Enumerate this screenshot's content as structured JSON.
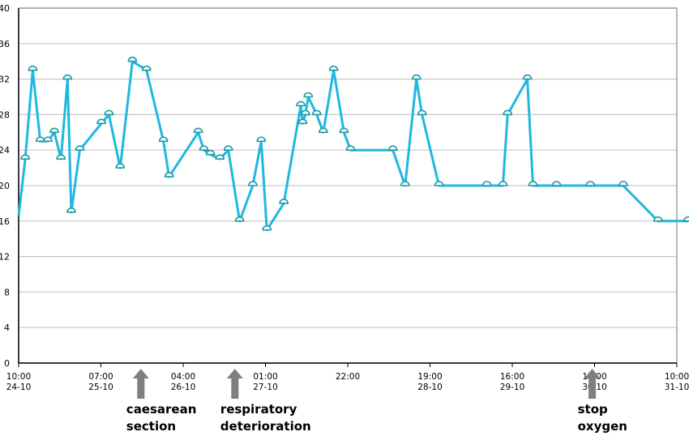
{
  "chart_data": {
    "type": "line",
    "title": "",
    "xlabel": "",
    "ylabel": "",
    "ylim": [
      0,
      40
    ],
    "yticks": [
      0,
      4,
      8,
      12,
      16,
      20,
      24,
      28,
      32,
      36,
      40
    ],
    "grid": "horizontal",
    "legend": "none",
    "line_color": "#1fb8e0",
    "marker_color": "#1a9aa0",
    "xaxis_range_days": [
      0,
      7.0
    ],
    "xtick_labels": [
      {
        "t": 0.0,
        "time": "10:00",
        "date": "24-10"
      },
      {
        "t": 0.875,
        "time": "07:00",
        "date": "25-10"
      },
      {
        "t": 1.75,
        "time": "04:00",
        "date": "26-10"
      },
      {
        "t": 2.625,
        "time": "01:00",
        "date": "27-10"
      },
      {
        "t": 3.5,
        "time": "22:00",
        "date": ""
      },
      {
        "t": 4.375,
        "time": "19:00",
        "date": "28-10"
      },
      {
        "t": 5.25,
        "time": "16:00",
        "date": "29-10"
      },
      {
        "t": 6.125,
        "time": "13:00",
        "date": "30-10"
      },
      {
        "t": 7.0,
        "time": "10:00",
        "date": "31-10"
      }
    ],
    "series": [
      {
        "start_value": 16.6,
        "points": [
          [
            0.07,
            23
          ],
          [
            0.15,
            33
          ],
          [
            0.23,
            25
          ],
          [
            0.31,
            25
          ],
          [
            0.38,
            26
          ],
          [
            0.45,
            23
          ],
          [
            0.52,
            32
          ],
          [
            0.56,
            17
          ],
          [
            0.65,
            24
          ],
          [
            0.88,
            27
          ],
          [
            0.96,
            28
          ],
          [
            1.08,
            22
          ],
          [
            1.21,
            34
          ],
          [
            1.36,
            33
          ],
          [
            1.54,
            25
          ],
          [
            1.6,
            21
          ],
          [
            1.91,
            26
          ],
          [
            1.97,
            24
          ],
          [
            2.04,
            23.5
          ],
          [
            2.14,
            23
          ],
          [
            2.23,
            24
          ],
          [
            2.35,
            16
          ],
          [
            2.49,
            20
          ],
          [
            2.58,
            25
          ],
          [
            2.64,
            15
          ],
          [
            2.82,
            18
          ],
          [
            3.0,
            29
          ],
          [
            3.02,
            27
          ],
          [
            3.05,
            28
          ],
          [
            3.08,
            30
          ],
          [
            3.17,
            28
          ],
          [
            3.24,
            26
          ],
          [
            3.35,
            33
          ],
          [
            3.46,
            26
          ],
          [
            3.53,
            24
          ],
          [
            3.98,
            24
          ],
          [
            4.11,
            20
          ],
          [
            4.23,
            32
          ],
          [
            4.29,
            28
          ],
          [
            4.47,
            20
          ],
          [
            4.98,
            20
          ],
          [
            5.15,
            20
          ],
          [
            5.2,
            28
          ],
          [
            5.41,
            32
          ],
          [
            5.47,
            20
          ],
          [
            5.72,
            20
          ],
          [
            6.08,
            20
          ],
          [
            6.43,
            20
          ],
          [
            6.8,
            16
          ],
          [
            7.12,
            16
          ]
        ]
      }
    ],
    "annotations": [
      {
        "t": 1.3,
        "lines": [
          "caesarean",
          "section"
        ]
      },
      {
        "t": 2.3,
        "lines": [
          "respiratory",
          "deterioration"
        ]
      },
      {
        "t": 6.1,
        "lines": [
          "stop",
          "oxygen"
        ]
      }
    ]
  }
}
